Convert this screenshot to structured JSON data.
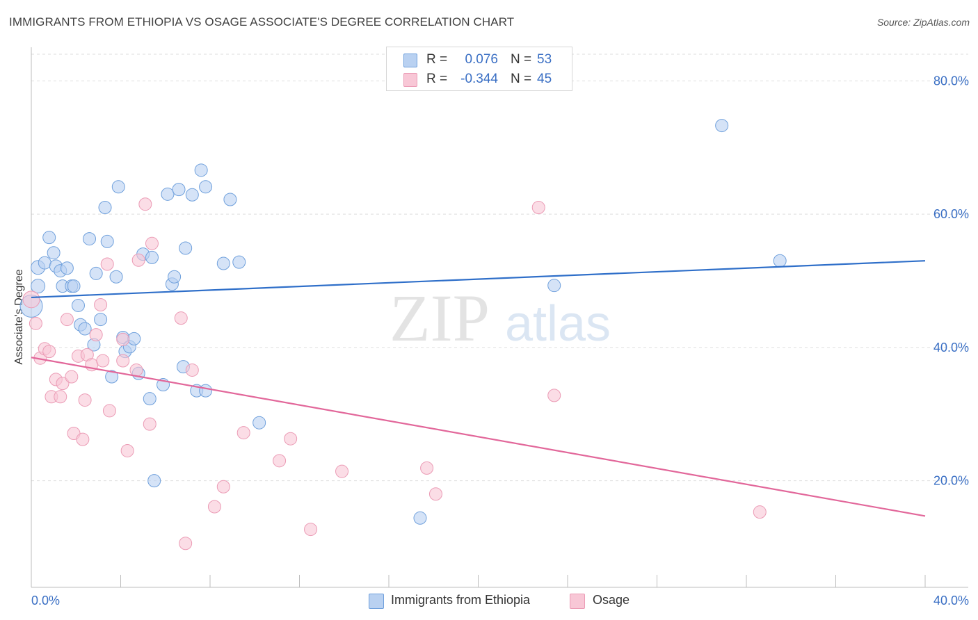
{
  "header": {
    "title": "IMMIGRANTS FROM ETHIOPIA VS OSAGE ASSOCIATE'S DEGREE CORRELATION CHART",
    "source": "Source: ZipAtlas.com"
  },
  "watermark": {
    "zip": "ZIP",
    "atlas": "atlas"
  },
  "legend": {
    "rows": [
      {
        "r_label": "R =",
        "r_value": "0.076",
        "n_label": "N =",
        "n_value": "53"
      },
      {
        "r_label": "R =",
        "r_value": "-0.344",
        "n_label": "N =",
        "n_value": "45"
      }
    ]
  },
  "chart_data": {
    "type": "scatter",
    "ylabel": "Associate's Degree",
    "xlim": [
      0,
      40
    ],
    "ylim": [
      4,
      84
    ],
    "x_tick_labels": [
      "0.0%",
      "40.0%"
    ],
    "y_ticks": [
      20,
      40,
      60,
      80
    ],
    "y_tick_labels": [
      "20.0%",
      "40.0%",
      "60.0%",
      "80.0%"
    ],
    "grid": true,
    "legend_placement": "top-center and bottom",
    "series": [
      {
        "name": "Immigrants from Ethiopia",
        "color": "#6fa0dc",
        "fill": "#b9d1f1",
        "trend_color": "#2f6fc9",
        "trend": {
          "x": [
            0,
            40
          ],
          "y": [
            47.5,
            53.0
          ]
        },
        "points": [
          [
            0.0,
            46.2,
            32
          ],
          [
            0.3,
            49.2,
            20
          ],
          [
            0.3,
            52.0,
            20
          ],
          [
            0.6,
            52.7,
            18
          ],
          [
            0.8,
            56.5,
            18
          ],
          [
            1.0,
            54.2,
            18
          ],
          [
            1.1,
            52.2,
            18
          ],
          [
            1.3,
            51.5,
            18
          ],
          [
            1.4,
            49.2,
            18
          ],
          [
            1.6,
            51.9,
            18
          ],
          [
            1.8,
            49.2,
            18
          ],
          [
            1.9,
            49.2,
            18
          ],
          [
            2.1,
            46.3,
            18
          ],
          [
            2.2,
            43.4,
            18
          ],
          [
            2.4,
            42.8,
            18
          ],
          [
            2.6,
            56.3,
            18
          ],
          [
            2.8,
            40.4,
            18
          ],
          [
            2.9,
            51.1,
            18
          ],
          [
            3.1,
            44.2,
            18
          ],
          [
            3.3,
            61.0,
            18
          ],
          [
            3.4,
            55.9,
            18
          ],
          [
            3.6,
            35.6,
            18
          ],
          [
            3.8,
            50.6,
            18
          ],
          [
            3.9,
            64.1,
            18
          ],
          [
            4.1,
            41.5,
            18
          ],
          [
            4.2,
            39.4,
            18
          ],
          [
            4.4,
            40.1,
            18
          ],
          [
            4.6,
            41.3,
            18
          ],
          [
            4.8,
            36.1,
            18
          ],
          [
            5.0,
            54.0,
            18
          ],
          [
            5.3,
            32.3,
            18
          ],
          [
            5.4,
            53.5,
            18
          ],
          [
            5.5,
            20.0,
            18
          ],
          [
            5.9,
            34.4,
            18
          ],
          [
            6.1,
            63.0,
            18
          ],
          [
            6.3,
            49.5,
            18
          ],
          [
            6.4,
            50.6,
            18
          ],
          [
            6.6,
            63.7,
            18
          ],
          [
            6.8,
            37.1,
            18
          ],
          [
            6.9,
            54.9,
            18
          ],
          [
            7.2,
            62.9,
            18
          ],
          [
            7.4,
            33.5,
            18
          ],
          [
            7.6,
            66.6,
            18
          ],
          [
            7.8,
            64.1,
            18
          ],
          [
            7.8,
            33.5,
            18
          ],
          [
            8.6,
            52.6,
            18
          ],
          [
            8.9,
            62.2,
            18
          ],
          [
            9.3,
            52.8,
            18
          ],
          [
            10.2,
            28.7,
            18
          ],
          [
            17.4,
            14.4,
            18
          ],
          [
            23.4,
            49.3,
            18
          ],
          [
            30.9,
            73.3,
            18
          ],
          [
            33.5,
            53.0,
            18
          ]
        ]
      },
      {
        "name": "Osage",
        "color": "#eb9bb5",
        "fill": "#f8c7d6",
        "trend_color": "#e2679a",
        "trend": {
          "x": [
            0,
            40
          ],
          "y": [
            38.5,
            14.7
          ]
        },
        "points": [
          [
            0.0,
            47.2,
            24
          ],
          [
            0.2,
            43.6,
            18
          ],
          [
            0.4,
            38.4,
            18
          ],
          [
            0.6,
            39.8,
            18
          ],
          [
            0.8,
            39.4,
            18
          ],
          [
            0.9,
            32.6,
            18
          ],
          [
            1.1,
            35.2,
            18
          ],
          [
            1.3,
            32.6,
            18
          ],
          [
            1.4,
            34.6,
            18
          ],
          [
            1.6,
            44.2,
            18
          ],
          [
            1.8,
            35.6,
            18
          ],
          [
            1.9,
            27.1,
            18
          ],
          [
            2.1,
            38.7,
            18
          ],
          [
            2.3,
            26.2,
            18
          ],
          [
            2.4,
            32.1,
            18
          ],
          [
            2.5,
            38.9,
            18
          ],
          [
            2.7,
            37.4,
            18
          ],
          [
            2.9,
            41.9,
            18
          ],
          [
            3.1,
            46.4,
            18
          ],
          [
            3.2,
            38.0,
            18
          ],
          [
            3.4,
            52.5,
            18
          ],
          [
            3.5,
            30.5,
            18
          ],
          [
            4.1,
            41.2,
            18
          ],
          [
            4.1,
            38.0,
            18
          ],
          [
            4.3,
            24.5,
            18
          ],
          [
            4.7,
            36.6,
            18
          ],
          [
            4.8,
            53.1,
            18
          ],
          [
            5.1,
            61.5,
            18
          ],
          [
            5.3,
            28.5,
            18
          ],
          [
            5.4,
            55.6,
            18
          ],
          [
            6.7,
            44.4,
            18
          ],
          [
            6.9,
            10.6,
            18
          ],
          [
            7.2,
            36.6,
            18
          ],
          [
            8.2,
            16.1,
            18
          ],
          [
            8.6,
            19.1,
            18
          ],
          [
            9.5,
            27.2,
            18
          ],
          [
            11.1,
            23.0,
            18
          ],
          [
            11.6,
            26.3,
            18
          ],
          [
            12.5,
            12.7,
            18
          ],
          [
            13.9,
            21.4,
            18
          ],
          [
            17.7,
            21.9,
            18
          ],
          [
            18.1,
            18.0,
            18
          ],
          [
            22.7,
            61.0,
            18
          ],
          [
            23.4,
            32.8,
            18
          ],
          [
            32.6,
            15.3,
            18
          ]
        ]
      }
    ]
  }
}
